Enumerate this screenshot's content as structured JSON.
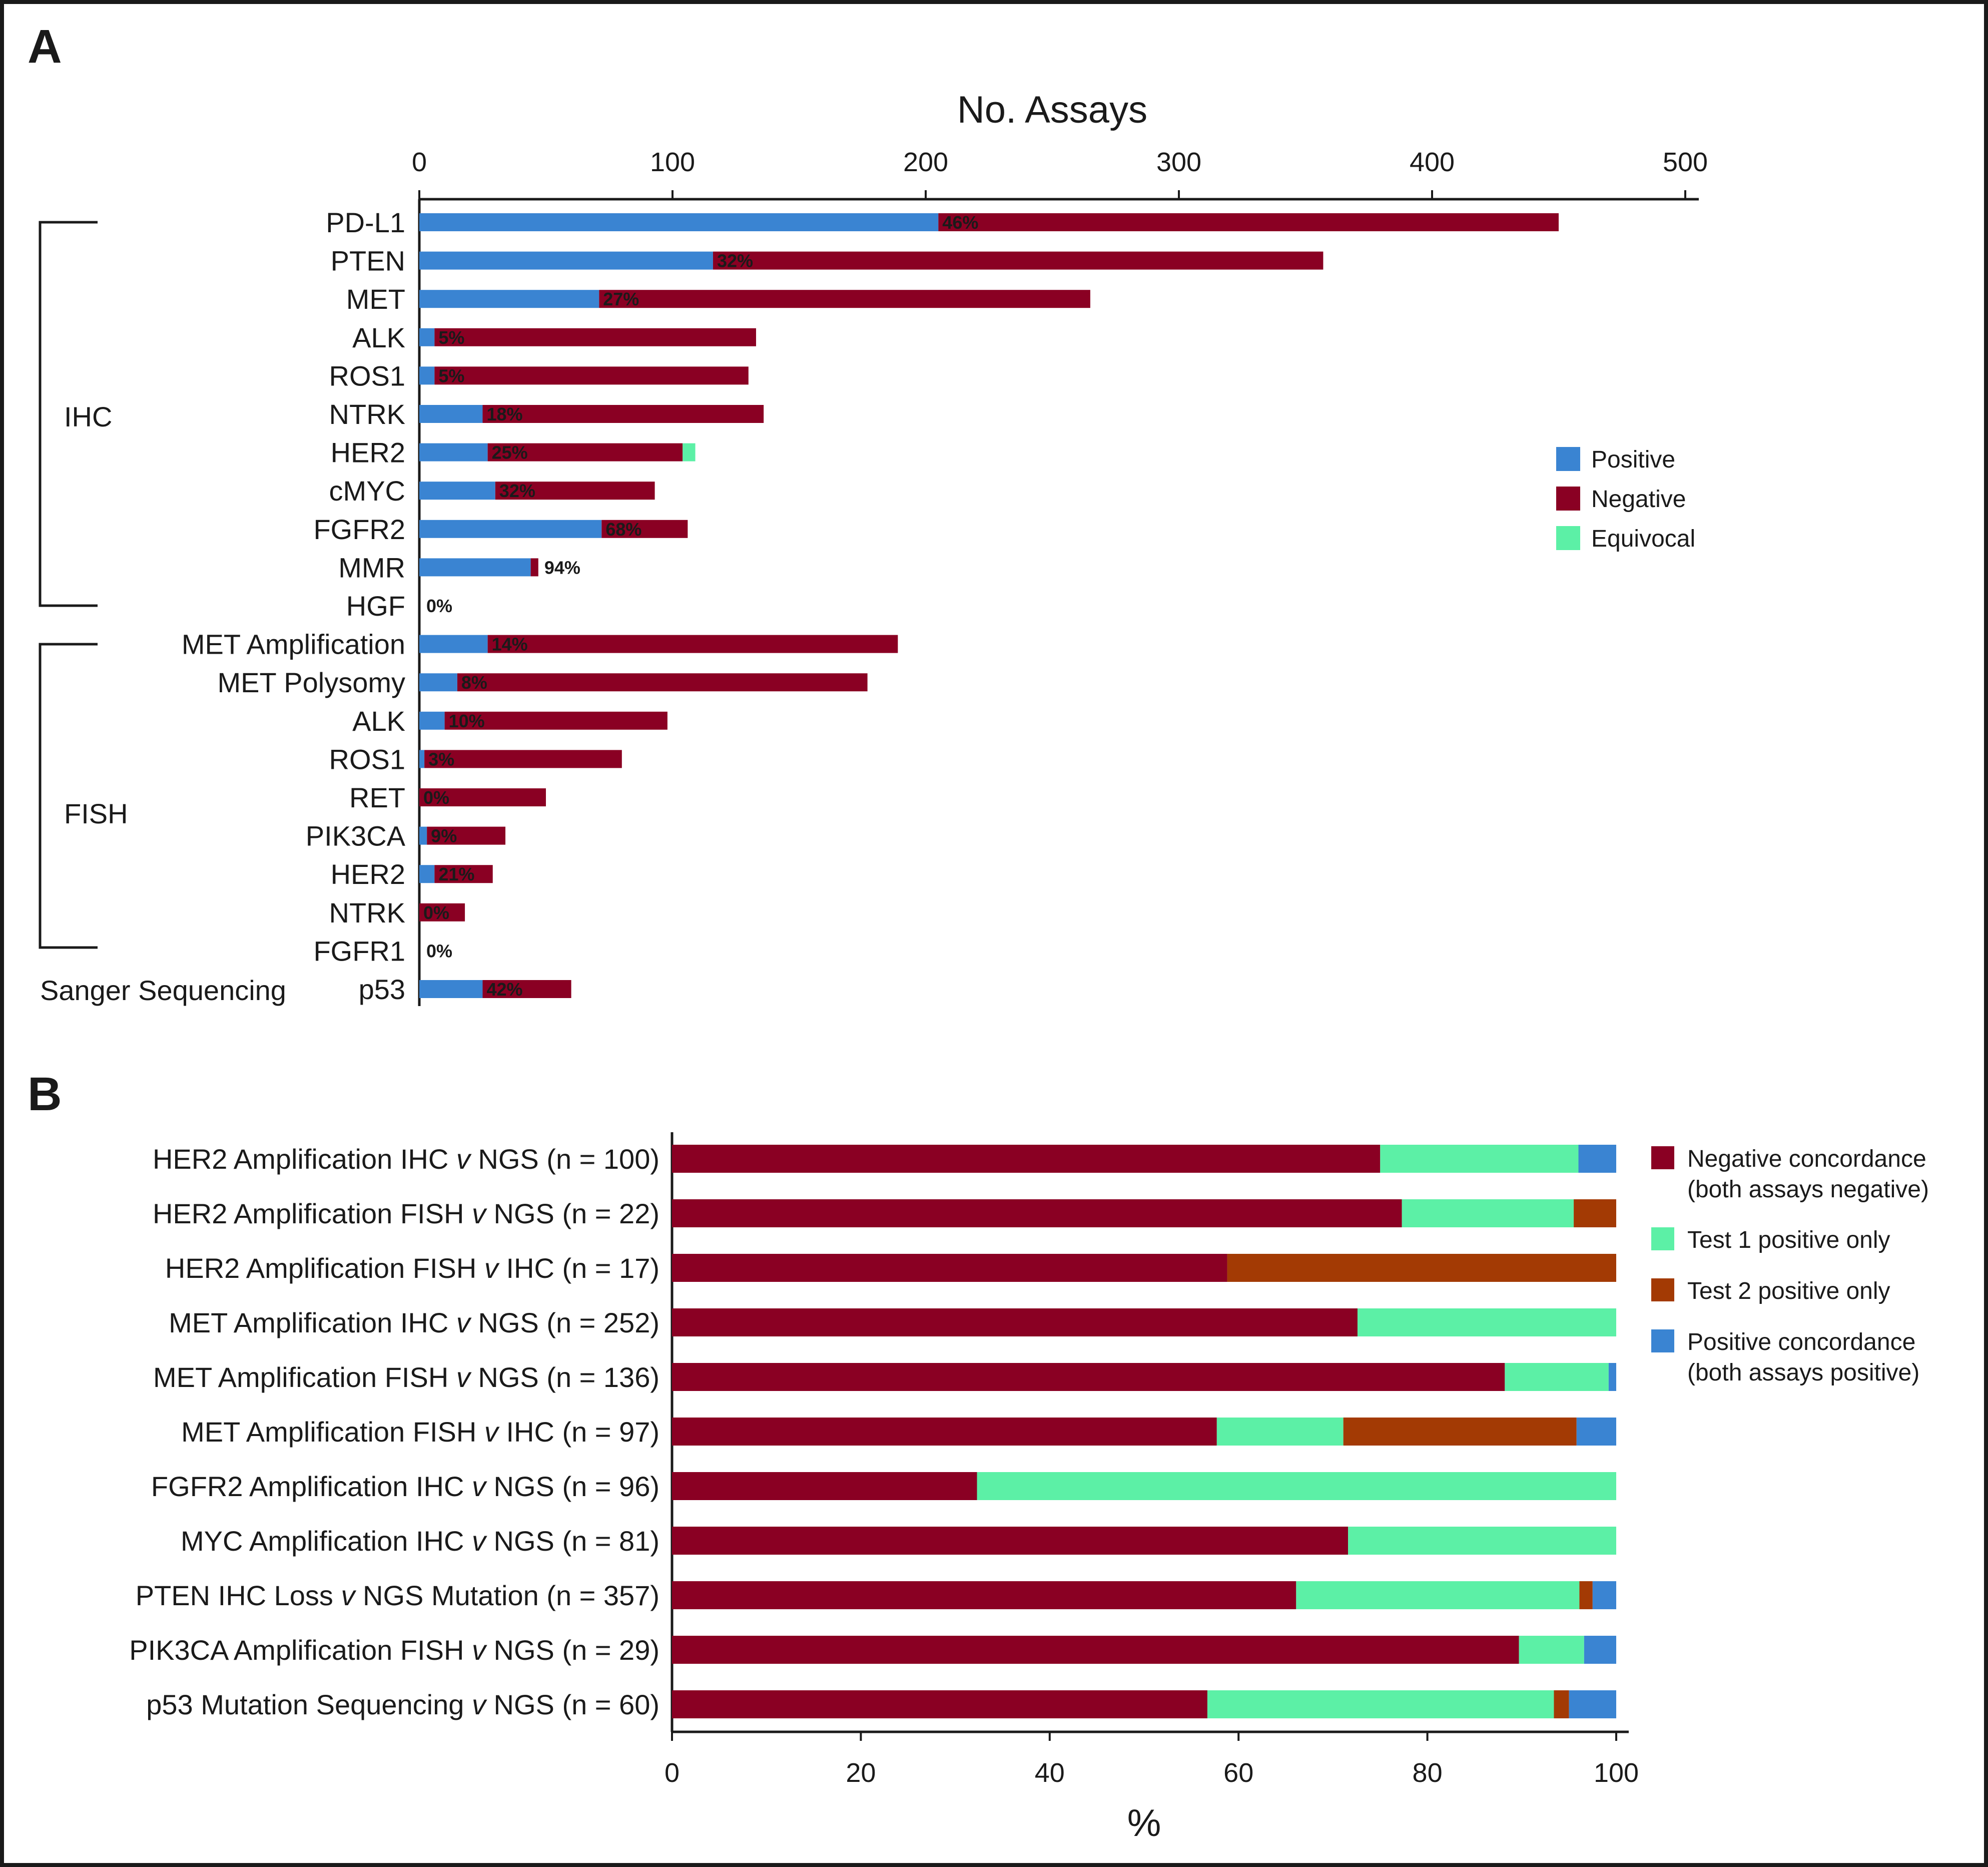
{
  "colors": {
    "positive": "#3a84d2",
    "negative": "#8a0023",
    "equivocal": "#5cf0a6",
    "test2": "#a33a04",
    "pct_inside": "#c7d6f2",
    "pct_outside": "#2f7fd0",
    "axis": "#1a1a1a"
  },
  "chart_data": [
    {
      "panel": "A",
      "type": "bar",
      "orientation": "horizontal",
      "stacked": true,
      "title": "No. Assays",
      "xlabel": "No. Assays",
      "xlim": [
        0,
        500
      ],
      "xticks": [
        0,
        100,
        200,
        300,
        400,
        500
      ],
      "legend": [
        "Positive",
        "Negative",
        "Equivocal"
      ],
      "legend_position": "right",
      "groups": [
        {
          "name": "IHC",
          "first": 0,
          "last": 10
        },
        {
          "name": "FISH",
          "first": 11,
          "last": 19
        },
        {
          "name": "Sanger Sequencing",
          "first": 20,
          "last": 20
        }
      ],
      "rows": [
        {
          "label": "PD-L1",
          "positive": 205,
          "negative": 245,
          "equivocal": 0,
          "pct": "46%"
        },
        {
          "label": "PTEN",
          "positive": 116,
          "negative": 241,
          "equivocal": 0,
          "pct": "32%"
        },
        {
          "label": "MET",
          "positive": 71,
          "negative": 194,
          "equivocal": 0,
          "pct": "27%"
        },
        {
          "label": "ALK",
          "positive": 6,
          "negative": 127,
          "equivocal": 0,
          "pct": "5%"
        },
        {
          "label": "ROS1",
          "positive": 6,
          "negative": 124,
          "equivocal": 0,
          "pct": "5%"
        },
        {
          "label": "NTRK",
          "positive": 25,
          "negative": 111,
          "equivocal": 0,
          "pct": "18%"
        },
        {
          "label": "HER2",
          "positive": 27,
          "negative": 77,
          "equivocal": 5,
          "pct": "25%"
        },
        {
          "label": "cMYC",
          "positive": 30,
          "negative": 63,
          "equivocal": 0,
          "pct": "32%"
        },
        {
          "label": "FGFR2",
          "positive": 72,
          "negative": 34,
          "equivocal": 0,
          "pct": "68%"
        },
        {
          "label": "MMR",
          "positive": 44,
          "negative": 3,
          "equivocal": 0,
          "pct": "94%"
        },
        {
          "label": "HGF",
          "positive": 0,
          "negative": 0,
          "equivocal": 0,
          "pct": "0%"
        },
        {
          "label": "MET Amplification",
          "positive": 27,
          "negative": 162,
          "equivocal": 0,
          "pct": "14%"
        },
        {
          "label": "MET Polysomy",
          "positive": 15,
          "negative": 162,
          "equivocal": 0,
          "pct": "8%"
        },
        {
          "label": "ALK",
          "positive": 10,
          "negative": 88,
          "equivocal": 0,
          "pct": "10%"
        },
        {
          "label": "ROS1",
          "positive": 2,
          "negative": 78,
          "equivocal": 0,
          "pct": "3%"
        },
        {
          "label": "RET",
          "positive": 0,
          "negative": 50,
          "equivocal": 0,
          "pct": "0%"
        },
        {
          "label": "PIK3CA",
          "positive": 3,
          "negative": 31,
          "equivocal": 0,
          "pct": "9%"
        },
        {
          "label": "HER2",
          "positive": 6,
          "negative": 23,
          "equivocal": 0,
          "pct": "21%"
        },
        {
          "label": "NTRK",
          "positive": 0,
          "negative": 18,
          "equivocal": 0,
          "pct": "0%"
        },
        {
          "label": "FGFR1",
          "positive": 0,
          "negative": 0,
          "equivocal": 0,
          "pct": "0%"
        },
        {
          "label": "p53",
          "positive": 25,
          "negative": 35,
          "equivocal": 0,
          "pct": "42%"
        }
      ]
    },
    {
      "panel": "B",
      "type": "bar",
      "orientation": "horizontal",
      "stacked": true,
      "xlabel": "%",
      "xlim": [
        0,
        100
      ],
      "xticks": [
        0,
        20,
        40,
        60,
        80,
        100
      ],
      "legend": [
        {
          "line1": "Negative concordance",
          "line2": "(both assays negative)"
        },
        {
          "line1": "Test 1 positive only",
          "line2": ""
        },
        {
          "line1": "Test 2 positive only",
          "line2": ""
        },
        {
          "line1": "Positive concordance",
          "line2": "(both assays positive)"
        }
      ],
      "legend_position": "right",
      "series_names": [
        "Negative concordance",
        "Test 1 positive only",
        "Test 2 positive only",
        "Positive concordance"
      ],
      "rows": [
        {
          "pre": "HER2 Amplification IHC ",
          "post": " NGS (n = 100)",
          "values": [
            75,
            21,
            0,
            4
          ]
        },
        {
          "pre": "HER2 Amplification FISH ",
          "post": " NGS (n = 22)",
          "values": [
            77.3,
            18.2,
            4.5,
            0
          ]
        },
        {
          "pre": "HER2 Amplification FISH ",
          "post": " IHC (n = 17)",
          "values": [
            58.8,
            0,
            41.2,
            0
          ]
        },
        {
          "pre": "MET Amplification IHC ",
          "post": " NGS (n = 252)",
          "values": [
            72.6,
            27.4,
            0,
            0
          ]
        },
        {
          "pre": "MET Amplification FISH ",
          "post": " NGS (n = 136)",
          "values": [
            88.2,
            11.0,
            0,
            0.8
          ]
        },
        {
          "pre": "MET Amplification FISH ",
          "post": " IHC (n = 97)",
          "values": [
            57.7,
            13.4,
            24.7,
            4.2
          ]
        },
        {
          "pre": "FGFR2 Amplification IHC ",
          "post": " NGS (n = 96)",
          "values": [
            32.3,
            67.7,
            0,
            0
          ]
        },
        {
          "pre": "MYC Amplification IHC ",
          "post": " NGS (n = 81)",
          "values": [
            71.6,
            28.4,
            0,
            0
          ]
        },
        {
          "pre": "PTEN IHC Loss ",
          "post": " NGS Mutation (n = 357)",
          "values": [
            66.1,
            30.0,
            1.4,
            2.5
          ]
        },
        {
          "pre": "PIK3CA Amplification FISH ",
          "post": " NGS (n = 29)",
          "values": [
            89.7,
            6.9,
            0,
            3.4
          ]
        },
        {
          "pre": "p53 Mutation Sequencing ",
          "post": " NGS (n = 60)",
          "values": [
            56.7,
            36.7,
            1.6,
            5.0
          ]
        }
      ],
      "v_label": "v"
    }
  ]
}
